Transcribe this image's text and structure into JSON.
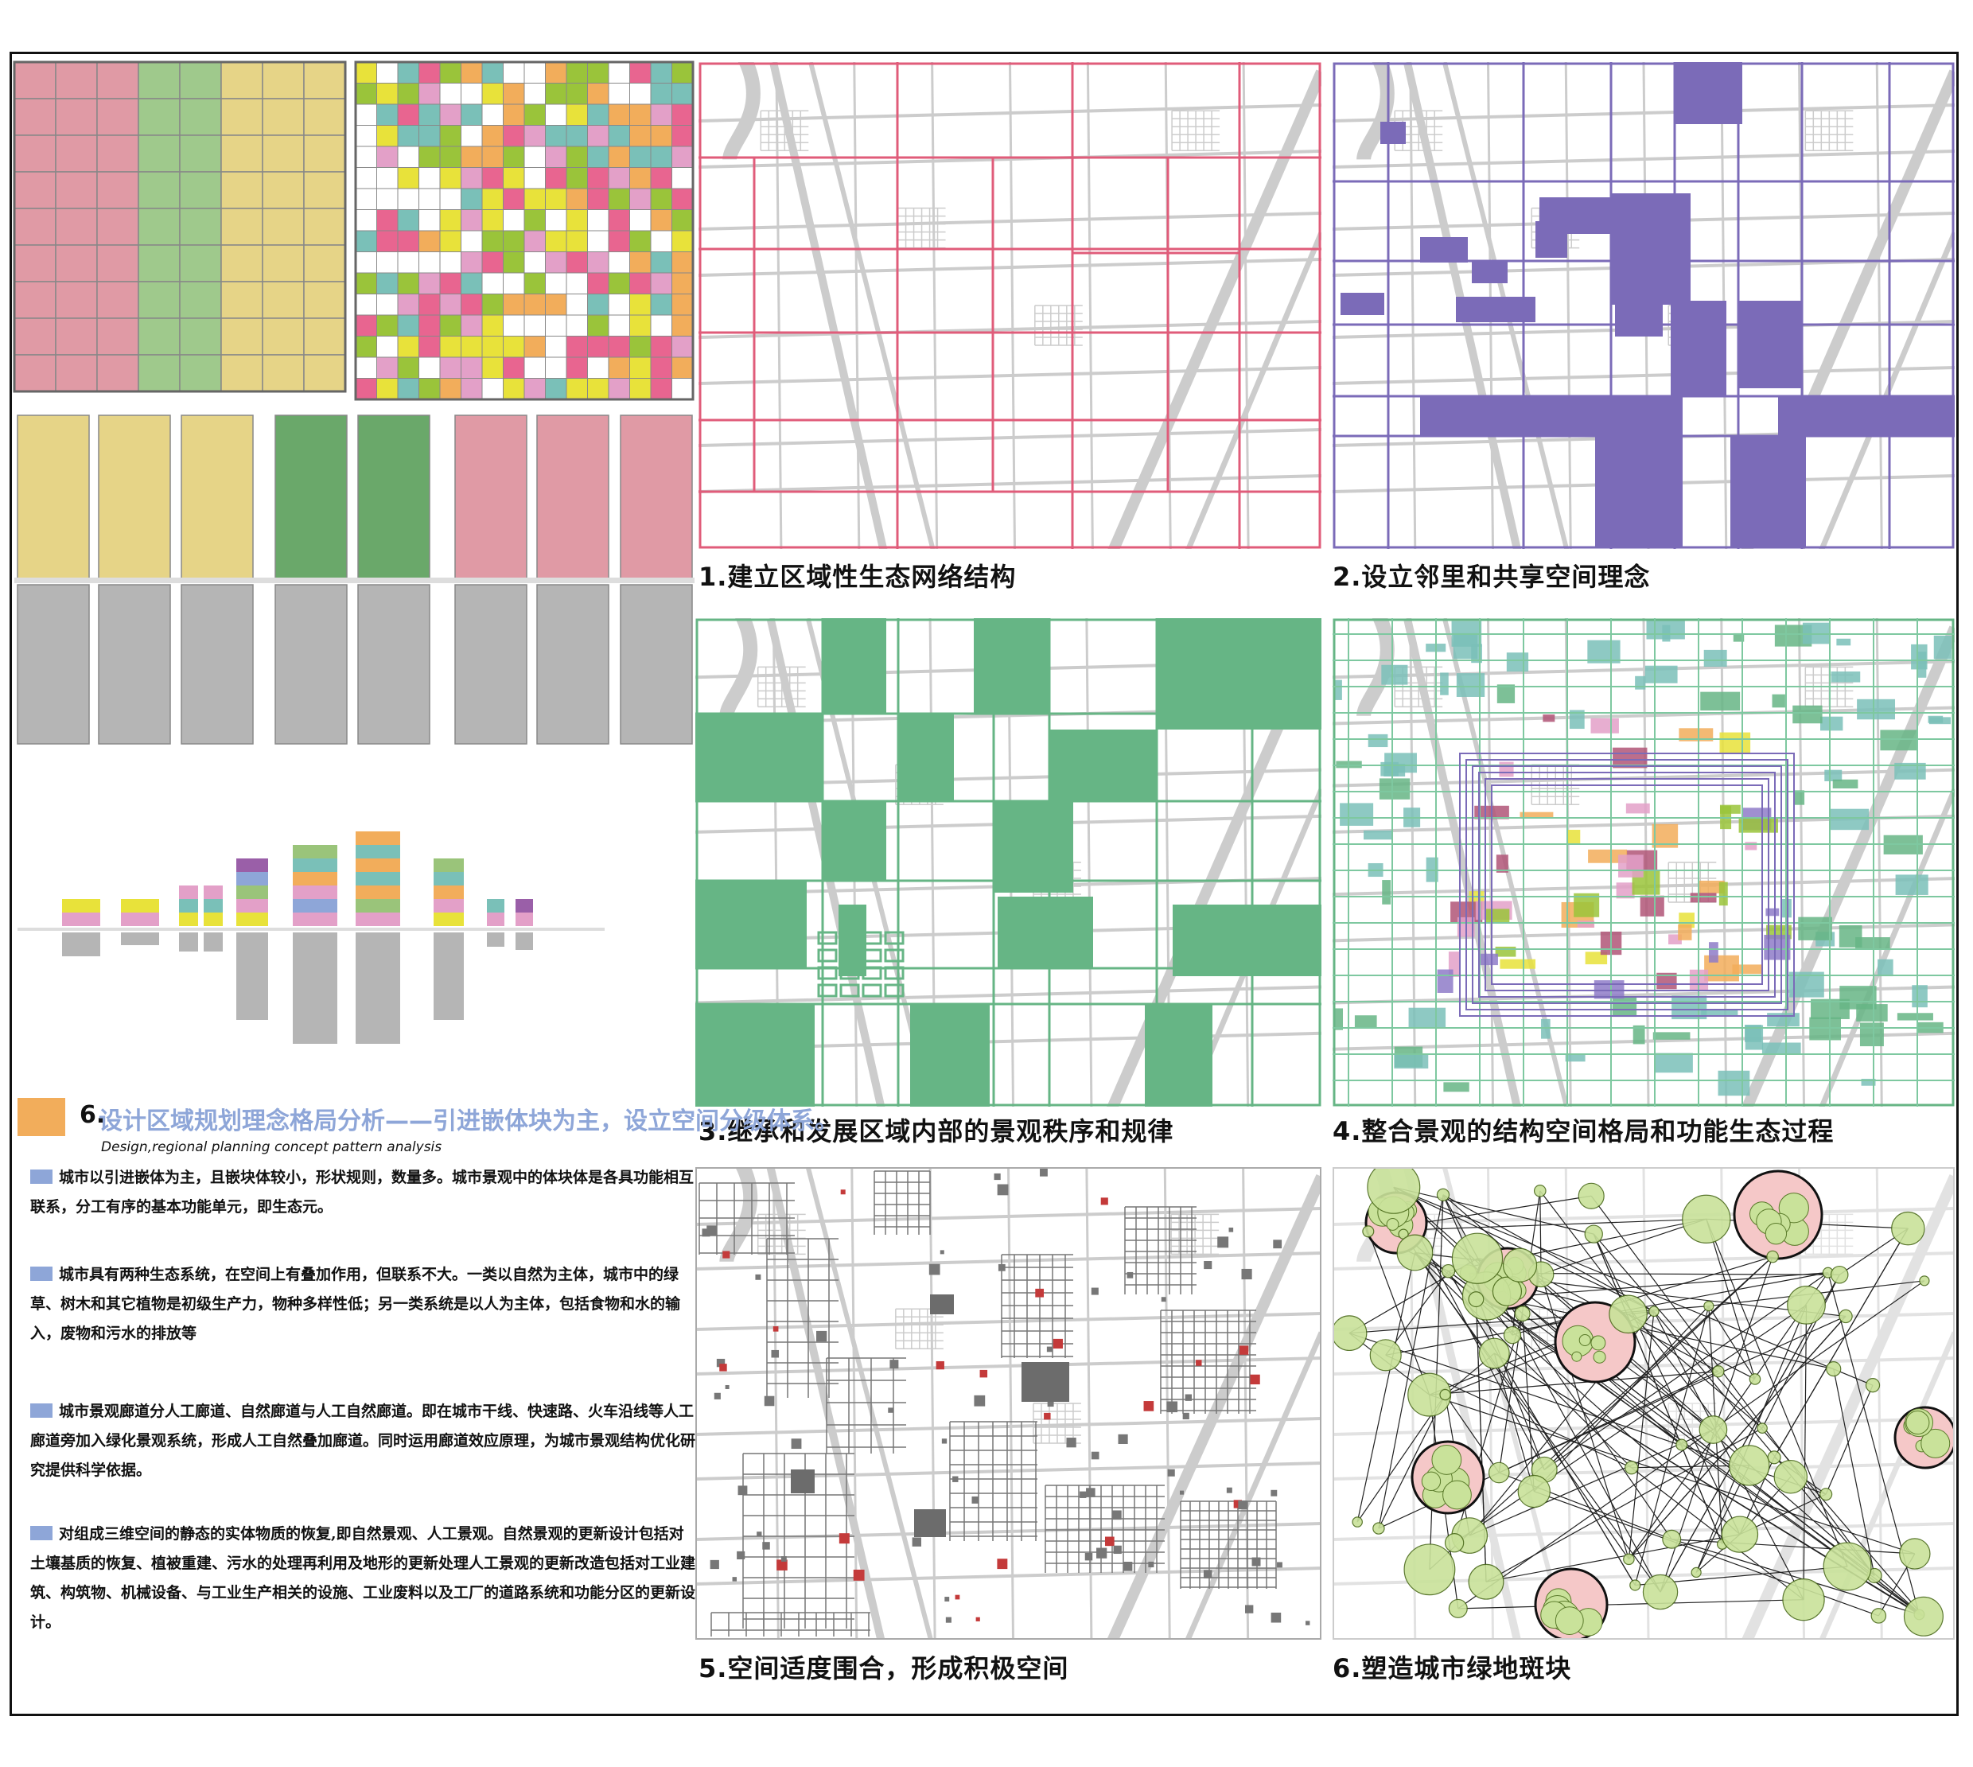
{
  "colors": {
    "pink": "#e09aa5",
    "green_light": "#9fc98c",
    "yellow": "#e6d487",
    "green_dark": "#6aa86a",
    "gray": "#b5b5b5",
    "panel1": "#e05c7a",
    "panel2": "#7b6bb8",
    "panel3": "#66b585",
    "panel4": "#7ec8a0",
    "road": "#cccccc",
    "orange": "#f2ad5b",
    "blue_bullet": "#8ea6d8"
  },
  "panels": [
    {
      "id": "p1",
      "caption": "1.建立区域性生态网络结构"
    },
    {
      "id": "p2",
      "caption": "2.设立邻里和共享空间理念"
    },
    {
      "id": "p3",
      "caption": "3.继承和发展区域内部的景观秩序和规律"
    },
    {
      "id": "p4",
      "caption": "4.整合景观的结构空间格局和功能生态过程"
    },
    {
      "id": "p5",
      "caption": "5.空间适度围合，形成积极空间"
    },
    {
      "id": "p6",
      "caption": "6.塑造城市绿地斑块"
    }
  ],
  "analysis": {
    "number": "6.",
    "title": "设计区域规划理念格局分析——引进嵌体块为主，设立空间分级体系。",
    "subtitle": "Design,regional planning concept pattern analysis",
    "paragraphs": [
      "城市以引进嵌体为主，且嵌块体较小，形状规则，数量多。城市景观中的体块体是各具功能相互联系，分工有序的基本功能单元，即生态元。",
      "城市具有两种生态系统，在空间上有叠加作用，但联系不大。一类以自然为主体，城市中的绿草、树木和其它植物是初级生产力，物种多样性低；另一类系统是以人为主体，包括食物和水的输入，废物和污水的排放等",
      "城市景观廊道分人工廊道、自然廊道与人工自然廊道。即在城市干线、快速路、火车沿线等人工廊道旁加入绿化景观系统，形成人工自然叠加廊道。同时运用廊道效应原理，为城市景观结构优化研究提供科学依据。",
      "对组成三维空间的静态的实体物质的恢复,即自然景观、人工景观。自然景观的更新设计包括对土壤基质的恢复、植被重建、污水的处理再利用及地形的更新处理人工景观的更新改造包括对工业建筑、构筑物、机械设备、与工业生产相关的设施、工业废料以及工厂的道路系统和功能分区的更新设计。"
    ]
  }
}
